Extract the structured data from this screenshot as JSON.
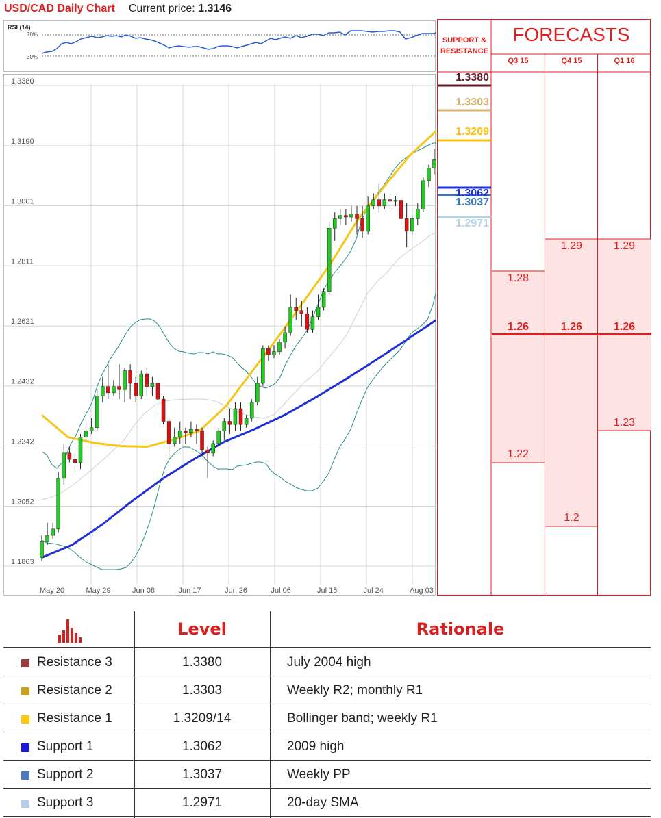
{
  "header": {
    "title": "USD/CAD Daily Chart",
    "price_label": "Current price:",
    "price_value": "1.3146"
  },
  "rsi": {
    "label": "RSI (14)",
    "levels": [
      "70%",
      "30%"
    ]
  },
  "chart_data": {
    "type": "candlestick",
    "title": "USD/CAD Daily Chart",
    "y_ticks": [
      "1.3380",
      "1.3190",
      "1.3001",
      "1.2811",
      "1.2621",
      "1.2432",
      "1.2242",
      "1.2052",
      "1.1863"
    ],
    "ylim": [
      1.1863,
      1.338
    ],
    "x_ticks": [
      "May 20",
      "May 29",
      "Jun 08",
      "Jun 17",
      "Jun 26",
      "Jul 06",
      "Jul 15",
      "Jul 24",
      "Aug 03"
    ],
    "grid": true,
    "candles": [
      [
        1.189,
        1.194,
        1.188,
        1.196
      ],
      [
        1.194,
        1.196,
        1.193,
        1.2
      ],
      [
        1.196,
        1.198,
        1.195,
        1.2
      ],
      [
        1.198,
        1.214,
        1.197,
        1.216
      ],
      [
        1.214,
        1.222,
        1.212,
        1.225
      ],
      [
        1.222,
        1.22,
        1.219,
        1.224
      ],
      [
        1.22,
        1.219,
        1.216,
        1.222
      ],
      [
        1.219,
        1.227,
        1.217,
        1.228
      ],
      [
        1.227,
        1.229,
        1.226,
        1.232
      ],
      [
        1.229,
        1.23,
        1.228,
        1.233
      ],
      [
        1.23,
        1.24,
        1.229,
        1.242
      ],
      [
        1.24,
        1.243,
        1.238,
        1.246
      ],
      [
        1.243,
        1.241,
        1.239,
        1.25
      ],
      [
        1.241,
        1.243,
        1.24,
        1.245
      ],
      [
        1.243,
        1.242,
        1.239,
        1.25
      ],
      [
        1.242,
        1.248,
        1.238,
        1.249
      ],
      [
        1.248,
        1.244,
        1.239,
        1.25
      ],
      [
        1.244,
        1.24,
        1.238,
        1.246
      ],
      [
        1.24,
        1.247,
        1.239,
        1.248
      ],
      [
        1.247,
        1.243,
        1.24,
        1.249
      ],
      [
        1.243,
        1.244,
        1.24,
        1.246
      ],
      [
        1.244,
        1.239,
        1.235,
        1.245
      ],
      [
        1.239,
        1.232,
        1.231,
        1.24
      ],
      [
        1.232,
        1.225,
        1.22,
        1.233
      ],
      [
        1.225,
        1.227,
        1.224,
        1.23
      ],
      [
        1.227,
        1.229,
        1.225,
        1.232
      ],
      [
        1.229,
        1.2285,
        1.225,
        1.23
      ],
      [
        1.2285,
        1.2295,
        1.227,
        1.232
      ],
      [
        1.2295,
        1.229,
        1.225,
        1.231
      ],
      [
        1.229,
        1.223,
        1.221,
        1.23
      ],
      [
        1.223,
        1.222,
        1.214,
        1.224
      ],
      [
        1.222,
        1.225,
        1.221,
        1.226
      ],
      [
        1.225,
        1.229,
        1.224,
        1.23
      ],
      [
        1.229,
        1.232,
        1.226,
        1.233
      ],
      [
        1.232,
        1.231,
        1.228,
        1.236
      ],
      [
        1.231,
        1.236,
        1.229,
        1.238
      ],
      [
        1.236,
        1.231,
        1.229,
        1.238
      ],
      [
        1.231,
        1.233,
        1.23,
        1.234
      ],
      [
        1.233,
        1.238,
        1.232,
        1.239
      ],
      [
        1.238,
        1.244,
        1.237,
        1.246
      ],
      [
        1.244,
        1.255,
        1.243,
        1.256
      ],
      [
        1.255,
        1.253,
        1.251,
        1.256
      ],
      [
        1.253,
        1.254,
        1.252,
        1.256
      ],
      [
        1.254,
        1.257,
        1.253,
        1.258
      ],
      [
        1.257,
        1.26,
        1.255,
        1.262
      ],
      [
        1.26,
        1.268,
        1.259,
        1.272
      ],
      [
        1.268,
        1.267,
        1.264,
        1.271
      ],
      [
        1.267,
        1.266,
        1.262,
        1.27
      ],
      [
        1.266,
        1.261,
        1.26,
        1.268
      ],
      [
        1.261,
        1.265,
        1.26,
        1.267
      ],
      [
        1.265,
        1.268,
        1.264,
        1.272
      ],
      [
        1.268,
        1.273,
        1.267,
        1.274
      ],
      [
        1.273,
        1.293,
        1.272,
        1.295
      ],
      [
        1.293,
        1.296,
        1.289,
        1.298
      ],
      [
        1.296,
        1.297,
        1.294,
        1.299
      ],
      [
        1.297,
        1.2965,
        1.294,
        1.299
      ],
      [
        1.2965,
        1.2975,
        1.295,
        1.3
      ],
      [
        1.2975,
        1.296,
        1.291,
        1.3
      ],
      [
        1.296,
        1.292,
        1.29,
        1.3
      ],
      [
        1.292,
        1.3,
        1.291,
        1.303
      ],
      [
        1.3,
        1.302,
        1.299,
        1.304
      ],
      [
        1.302,
        1.3,
        1.298,
        1.307
      ],
      [
        1.3,
        1.302,
        1.299,
        1.304
      ],
      [
        1.302,
        1.3015,
        1.299,
        1.303
      ],
      [
        1.3015,
        1.3018,
        1.3,
        1.303
      ],
      [
        1.3018,
        1.296,
        1.294,
        1.302
      ],
      [
        1.296,
        1.292,
        1.287,
        1.301
      ],
      [
        1.292,
        1.296,
        1.291,
        1.297
      ],
      [
        1.296,
        1.299,
        1.294,
        1.301
      ],
      [
        1.299,
        1.308,
        1.298,
        1.309
      ],
      [
        1.308,
        1.312,
        1.306,
        1.313
      ],
      [
        1.312,
        1.3146,
        1.31,
        1.318
      ]
    ],
    "series": [
      {
        "values": [
          1.234,
          1.227,
          1.2252,
          1.2242,
          1.224,
          1.2262,
          1.229,
          1.2368,
          1.2478,
          1.2588,
          1.2703,
          1.282,
          1.2955,
          1.306,
          1.316,
          1.3237
        ]
      },
      {
        "values": [
          1.189,
          1.193,
          1.1995,
          1.207,
          1.214,
          1.22,
          1.2255,
          1.2295,
          1.234,
          1.2394,
          1.2452,
          1.2513,
          1.2576,
          1.264
        ]
      }
    ]
  },
  "forecast": {
    "sr_header": [
      "SUPPORT &",
      "RESISTANCE"
    ],
    "title": "FORECASTS",
    "columns": [
      "Q3 15",
      "Q4 15",
      "Q1 16"
    ],
    "levels": [
      "1.3380",
      "1.3303",
      "1.3209",
      "1.3062",
      "1.3037",
      "1.2971"
    ],
    "level_colors": [
      "#6a1b2b",
      "#d6b36e",
      "#ffc000",
      "#1e2fd6",
      "#3c78b4",
      "#b4d2e6"
    ],
    "current_forecast": "1.26",
    "q3": {
      "high": "1.28",
      "low": "1.22"
    },
    "q4": {
      "high": "1.29",
      "low": "1.2"
    },
    "q1": {
      "high": "1.29",
      "low": "1.23"
    }
  },
  "table": {
    "headers": {
      "level": "Level",
      "rationale": "Rationale"
    },
    "rows": [
      {
        "name": "Resistance 3",
        "level": "1.3380",
        "rationale": "July 2004 high",
        "color": "#9b3b3b"
      },
      {
        "name": "Resistance 2",
        "level": "1.3303",
        "rationale": "Weekly R2; monthly R1",
        "color": "#c8a020"
      },
      {
        "name": "Resistance 1",
        "level": "1.3209/14",
        "rationale": "Bollinger band; weekly R1",
        "color": "#ffc800"
      },
      {
        "name": "Support 1",
        "level": "1.3062",
        "rationale": "2009 high",
        "color": "#1a1ad8"
      },
      {
        "name": "Support 2",
        "level": "1.3037",
        "rationale": "Weekly PP",
        "color": "#4a7ac0"
      },
      {
        "name": "Support 3",
        "level": "1.2971",
        "rationale": "20-day SMA",
        "color": "#b8cce8"
      }
    ]
  }
}
